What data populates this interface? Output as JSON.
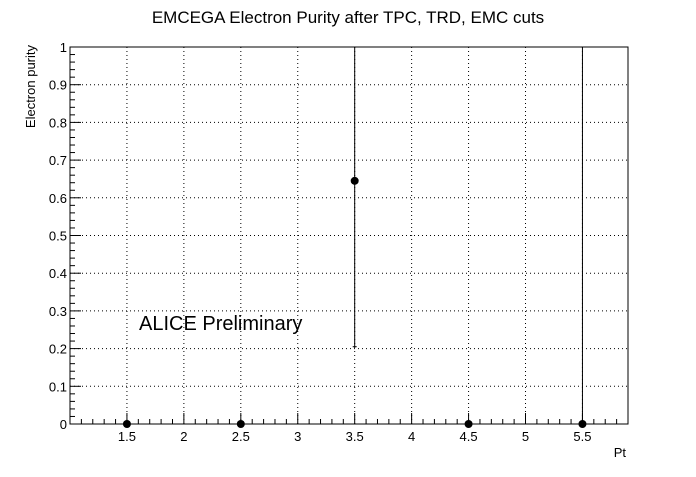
{
  "chart_data": {
    "type": "scatter",
    "title": "EMCEGA Electron Purity after TPC, TRD, EMC cuts",
    "xlabel": "Pt",
    "ylabel": "Electron purity",
    "xlim": [
      1.0,
      5.9
    ],
    "ylim": [
      0,
      1
    ],
    "x_ticks": [
      1.5,
      2,
      2.5,
      3,
      3.5,
      4,
      4.5,
      5,
      5.5
    ],
    "x_tick_labels": [
      "1.5",
      "2",
      "2.5",
      "3",
      "3.5",
      "4",
      "4.5",
      "5",
      "5.5"
    ],
    "y_ticks": [
      0,
      0.1,
      0.2,
      0.3,
      0.4,
      0.5,
      0.6,
      0.7,
      0.8,
      0.9,
      1
    ],
    "y_tick_labels": [
      "0",
      "0.1",
      "0.2",
      "0.3",
      "0.4",
      "0.5",
      "0.6",
      "0.7",
      "0.8",
      "0.9",
      "1"
    ],
    "grid": true,
    "annotation": "ALICE Preliminary",
    "points": [
      {
        "x": 1.5,
        "y": 0.0,
        "err_low": 0.0,
        "err_high": 0.0
      },
      {
        "x": 2.5,
        "y": 0.0,
        "err_low": 0.0,
        "err_high": 0.0
      },
      {
        "x": 3.5,
        "y": 0.645,
        "err_low": 0.44,
        "err_high": 0.355
      },
      {
        "x": 4.5,
        "y": 0.0,
        "err_low": 0.0,
        "err_high": 0.0
      },
      {
        "x": 5.5,
        "y": 0.0,
        "err_low": 0.0,
        "err_high": 1.0
      }
    ]
  }
}
